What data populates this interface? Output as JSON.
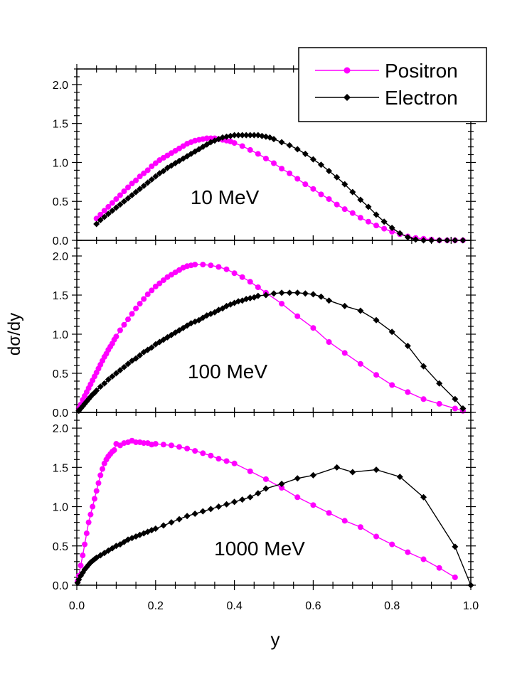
{
  "chart_data": {
    "type": "line",
    "xlabel": "y",
    "ylabel": "dσ/dy",
    "xlim": [
      0,
      1
    ],
    "ylim": [
      0,
      2.2
    ],
    "xticks": [
      "0.0",
      "0.2",
      "0.4",
      "0.6",
      "0.8",
      "1.0"
    ],
    "yticks": [
      "0.0",
      "0.5",
      "1.0",
      "1.5",
      "2.0"
    ],
    "legend": {
      "placement": "top-right",
      "entries": [
        {
          "name": "Positron",
          "color": "#ff00ff",
          "marker": "circle"
        },
        {
          "name": "Electron",
          "color": "#000000",
          "marker": "diamond"
        }
      ]
    },
    "panels": [
      {
        "label": "10 MeV",
        "series": [
          {
            "name": "Positron",
            "color": "#ff00ff",
            "marker": "circle",
            "x": [
              0.05,
              0.06,
              0.07,
              0.08,
              0.09,
              0.1,
              0.11,
              0.12,
              0.13,
              0.14,
              0.15,
              0.16,
              0.17,
              0.18,
              0.19,
              0.2,
              0.21,
              0.22,
              0.23,
              0.24,
              0.25,
              0.26,
              0.27,
              0.28,
              0.29,
              0.3,
              0.31,
              0.32,
              0.33,
              0.34,
              0.35,
              0.36,
              0.37,
              0.38,
              0.39,
              0.4,
              0.42,
              0.44,
              0.46,
              0.48,
              0.5,
              0.52,
              0.54,
              0.56,
              0.58,
              0.6,
              0.62,
              0.64,
              0.66,
              0.68,
              0.7,
              0.72,
              0.74,
              0.76,
              0.78,
              0.8,
              0.82,
              0.84,
              0.86,
              0.88,
              0.9,
              0.92,
              0.94,
              0.96,
              0.98
            ],
            "y": [
              0.28,
              0.33,
              0.38,
              0.43,
              0.48,
              0.53,
              0.58,
              0.63,
              0.68,
              0.73,
              0.77,
              0.82,
              0.86,
              0.9,
              0.95,
              0.99,
              1.03,
              1.06,
              1.09,
              1.12,
              1.15,
              1.18,
              1.21,
              1.24,
              1.26,
              1.28,
              1.29,
              1.3,
              1.31,
              1.31,
              1.31,
              1.3,
              1.29,
              1.28,
              1.27,
              1.25,
              1.21,
              1.16,
              1.11,
              1.05,
              0.99,
              0.92,
              0.86,
              0.79,
              0.72,
              0.66,
              0.59,
              0.53,
              0.46,
              0.4,
              0.35,
              0.29,
              0.24,
              0.19,
              0.15,
              0.11,
              0.08,
              0.05,
              0.03,
              0.02,
              0.01,
              0.0,
              0.0,
              0.0,
              0.0
            ]
          },
          {
            "name": "Electron",
            "color": "#000000",
            "marker": "diamond",
            "x": [
              0.05,
              0.06,
              0.07,
              0.08,
              0.09,
              0.1,
              0.11,
              0.12,
              0.13,
              0.14,
              0.15,
              0.16,
              0.17,
              0.18,
              0.19,
              0.2,
              0.21,
              0.22,
              0.23,
              0.24,
              0.25,
              0.26,
              0.27,
              0.28,
              0.29,
              0.3,
              0.31,
              0.32,
              0.33,
              0.34,
              0.35,
              0.36,
              0.37,
              0.38,
              0.39,
              0.4,
              0.41,
              0.42,
              0.43,
              0.44,
              0.45,
              0.46,
              0.47,
              0.48,
              0.49,
              0.5,
              0.52,
              0.54,
              0.56,
              0.58,
              0.6,
              0.62,
              0.64,
              0.66,
              0.68,
              0.7,
              0.72,
              0.74,
              0.76,
              0.78,
              0.8,
              0.82,
              0.84,
              0.86,
              0.88,
              0.9,
              0.92,
              0.94,
              0.96,
              0.98
            ],
            "y": [
              0.21,
              0.26,
              0.3,
              0.34,
              0.38,
              0.42,
              0.46,
              0.5,
              0.54,
              0.58,
              0.62,
              0.66,
              0.7,
              0.74,
              0.78,
              0.82,
              0.86,
              0.89,
              0.93,
              0.96,
              0.99,
              1.02,
              1.05,
              1.08,
              1.11,
              1.14,
              1.17,
              1.2,
              1.23,
              1.26,
              1.28,
              1.3,
              1.32,
              1.33,
              1.34,
              1.35,
              1.35,
              1.35,
              1.35,
              1.35,
              1.35,
              1.35,
              1.34,
              1.33,
              1.32,
              1.3,
              1.26,
              1.22,
              1.17,
              1.11,
              1.04,
              0.97,
              0.89,
              0.81,
              0.72,
              0.62,
              0.52,
              0.43,
              0.33,
              0.24,
              0.16,
              0.09,
              0.04,
              0.01,
              0.0,
              0.0,
              0.0,
              0.0,
              0.0,
              0.0
            ]
          }
        ]
      },
      {
        "label": "100 MeV",
        "series": [
          {
            "name": "Positron",
            "color": "#ff00ff",
            "marker": "circle",
            "x": [
              0.005,
              0.01,
              0.015,
              0.02,
              0.025,
              0.03,
              0.035,
              0.04,
              0.045,
              0.05,
              0.055,
              0.06,
              0.065,
              0.07,
              0.075,
              0.08,
              0.085,
              0.09,
              0.095,
              0.1,
              0.11,
              0.12,
              0.13,
              0.14,
              0.15,
              0.16,
              0.17,
              0.18,
              0.19,
              0.2,
              0.21,
              0.22,
              0.23,
              0.24,
              0.25,
              0.26,
              0.27,
              0.28,
              0.29,
              0.3,
              0.32,
              0.34,
              0.36,
              0.38,
              0.4,
              0.42,
              0.44,
              0.46,
              0.48,
              0.52,
              0.56,
              0.6,
              0.64,
              0.68,
              0.72,
              0.76,
              0.8,
              0.84,
              0.88,
              0.92,
              0.96,
              0.98
            ],
            "y": [
              0.05,
              0.1,
              0.16,
              0.21,
              0.26,
              0.31,
              0.36,
              0.41,
              0.46,
              0.51,
              0.56,
              0.61,
              0.66,
              0.71,
              0.75,
              0.8,
              0.84,
              0.88,
              0.93,
              0.97,
              1.05,
              1.12,
              1.19,
              1.26,
              1.33,
              1.39,
              1.45,
              1.51,
              1.56,
              1.61,
              1.65,
              1.69,
              1.73,
              1.76,
              1.79,
              1.82,
              1.85,
              1.87,
              1.88,
              1.89,
              1.89,
              1.88,
              1.86,
              1.83,
              1.78,
              1.73,
              1.67,
              1.6,
              1.53,
              1.39,
              1.23,
              1.08,
              0.9,
              0.76,
              0.62,
              0.48,
              0.35,
              0.26,
              0.17,
              0.11,
              0.05,
              0.02
            ]
          },
          {
            "name": "Electron",
            "color": "#000000",
            "marker": "diamond",
            "x": [
              0.005,
              0.01,
              0.015,
              0.02,
              0.025,
              0.03,
              0.035,
              0.04,
              0.045,
              0.05,
              0.06,
              0.07,
              0.08,
              0.09,
              0.1,
              0.11,
              0.12,
              0.13,
              0.14,
              0.15,
              0.16,
              0.17,
              0.18,
              0.19,
              0.2,
              0.21,
              0.22,
              0.23,
              0.24,
              0.25,
              0.26,
              0.27,
              0.28,
              0.29,
              0.3,
              0.31,
              0.32,
              0.33,
              0.34,
              0.35,
              0.36,
              0.37,
              0.38,
              0.39,
              0.4,
              0.41,
              0.42,
              0.43,
              0.44,
              0.45,
              0.46,
              0.48,
              0.5,
              0.52,
              0.54,
              0.56,
              0.58,
              0.6,
              0.62,
              0.64,
              0.68,
              0.72,
              0.76,
              0.8,
              0.84,
              0.88,
              0.92,
              0.96,
              0.98
            ],
            "y": [
              0.02,
              0.05,
              0.08,
              0.11,
              0.14,
              0.17,
              0.2,
              0.23,
              0.25,
              0.28,
              0.33,
              0.37,
              0.42,
              0.46,
              0.5,
              0.54,
              0.58,
              0.62,
              0.66,
              0.69,
              0.73,
              0.77,
              0.8,
              0.83,
              0.87,
              0.9,
              0.93,
              0.96,
              0.99,
              1.02,
              1.05,
              1.08,
              1.11,
              1.14,
              1.16,
              1.18,
              1.21,
              1.24,
              1.26,
              1.28,
              1.31,
              1.33,
              1.36,
              1.38,
              1.4,
              1.42,
              1.43,
              1.45,
              1.46,
              1.47,
              1.49,
              1.5,
              1.52,
              1.53,
              1.53,
              1.53,
              1.52,
              1.51,
              1.48,
              1.43,
              1.36,
              1.3,
              1.18,
              1.03,
              0.85,
              0.59,
              0.37,
              0.17,
              0.05
            ]
          }
        ]
      },
      {
        "label": "1000 MeV",
        "series": [
          {
            "name": "Positron",
            "color": "#ff00ff",
            "marker": "circle",
            "x": [
              0.002,
              0.005,
              0.01,
              0.015,
              0.02,
              0.025,
              0.03,
              0.035,
              0.04,
              0.045,
              0.05,
              0.055,
              0.06,
              0.065,
              0.07,
              0.075,
              0.08,
              0.085,
              0.09,
              0.095,
              0.1,
              0.11,
              0.12,
              0.13,
              0.14,
              0.15,
              0.16,
              0.17,
              0.18,
              0.19,
              0.2,
              0.22,
              0.24,
              0.26,
              0.28,
              0.3,
              0.32,
              0.34,
              0.36,
              0.38,
              0.4,
              0.44,
              0.48,
              0.52,
              0.56,
              0.6,
              0.64,
              0.68,
              0.72,
              0.76,
              0.8,
              0.84,
              0.88,
              0.92,
              0.96
            ],
            "y": [
              0.05,
              0.12,
              0.25,
              0.38,
              0.52,
              0.66,
              0.8,
              0.9,
              1.0,
              1.1,
              1.2,
              1.3,
              1.4,
              1.48,
              1.55,
              1.6,
              1.64,
              1.67,
              1.7,
              1.72,
              1.8,
              1.78,
              1.81,
              1.82,
              1.84,
              1.82,
              1.82,
              1.81,
              1.81,
              1.79,
              1.8,
              1.79,
              1.78,
              1.76,
              1.74,
              1.71,
              1.68,
              1.65,
              1.61,
              1.58,
              1.55,
              1.45,
              1.35,
              1.24,
              1.12,
              1.02,
              0.92,
              0.82,
              0.74,
              0.62,
              0.52,
              0.42,
              0.33,
              0.22,
              0.1
            ]
          },
          {
            "name": "Electron",
            "color": "#000000",
            "marker": "diamond",
            "x": [
              0.002,
              0.005,
              0.01,
              0.015,
              0.02,
              0.025,
              0.03,
              0.035,
              0.04,
              0.045,
              0.05,
              0.06,
              0.07,
              0.08,
              0.09,
              0.1,
              0.11,
              0.12,
              0.13,
              0.14,
              0.15,
              0.16,
              0.17,
              0.18,
              0.19,
              0.2,
              0.22,
              0.24,
              0.26,
              0.28,
              0.3,
              0.32,
              0.34,
              0.36,
              0.38,
              0.4,
              0.42,
              0.44,
              0.46,
              0.48,
              0.52,
              0.56,
              0.6,
              0.66,
              0.7,
              0.76,
              0.82,
              0.88,
              0.96,
              1.0
            ],
            "y": [
              0.03,
              0.07,
              0.12,
              0.16,
              0.2,
              0.23,
              0.26,
              0.29,
              0.31,
              0.33,
              0.35,
              0.38,
              0.41,
              0.44,
              0.47,
              0.5,
              0.52,
              0.55,
              0.58,
              0.6,
              0.62,
              0.64,
              0.66,
              0.68,
              0.7,
              0.72,
              0.76,
              0.8,
              0.84,
              0.88,
              0.91,
              0.94,
              0.97,
              1.0,
              1.03,
              1.06,
              1.09,
              1.12,
              1.17,
              1.23,
              1.29,
              1.36,
              1.4,
              1.5,
              1.44,
              1.47,
              1.38,
              1.12,
              0.49,
              0.0
            ]
          }
        ]
      }
    ]
  }
}
